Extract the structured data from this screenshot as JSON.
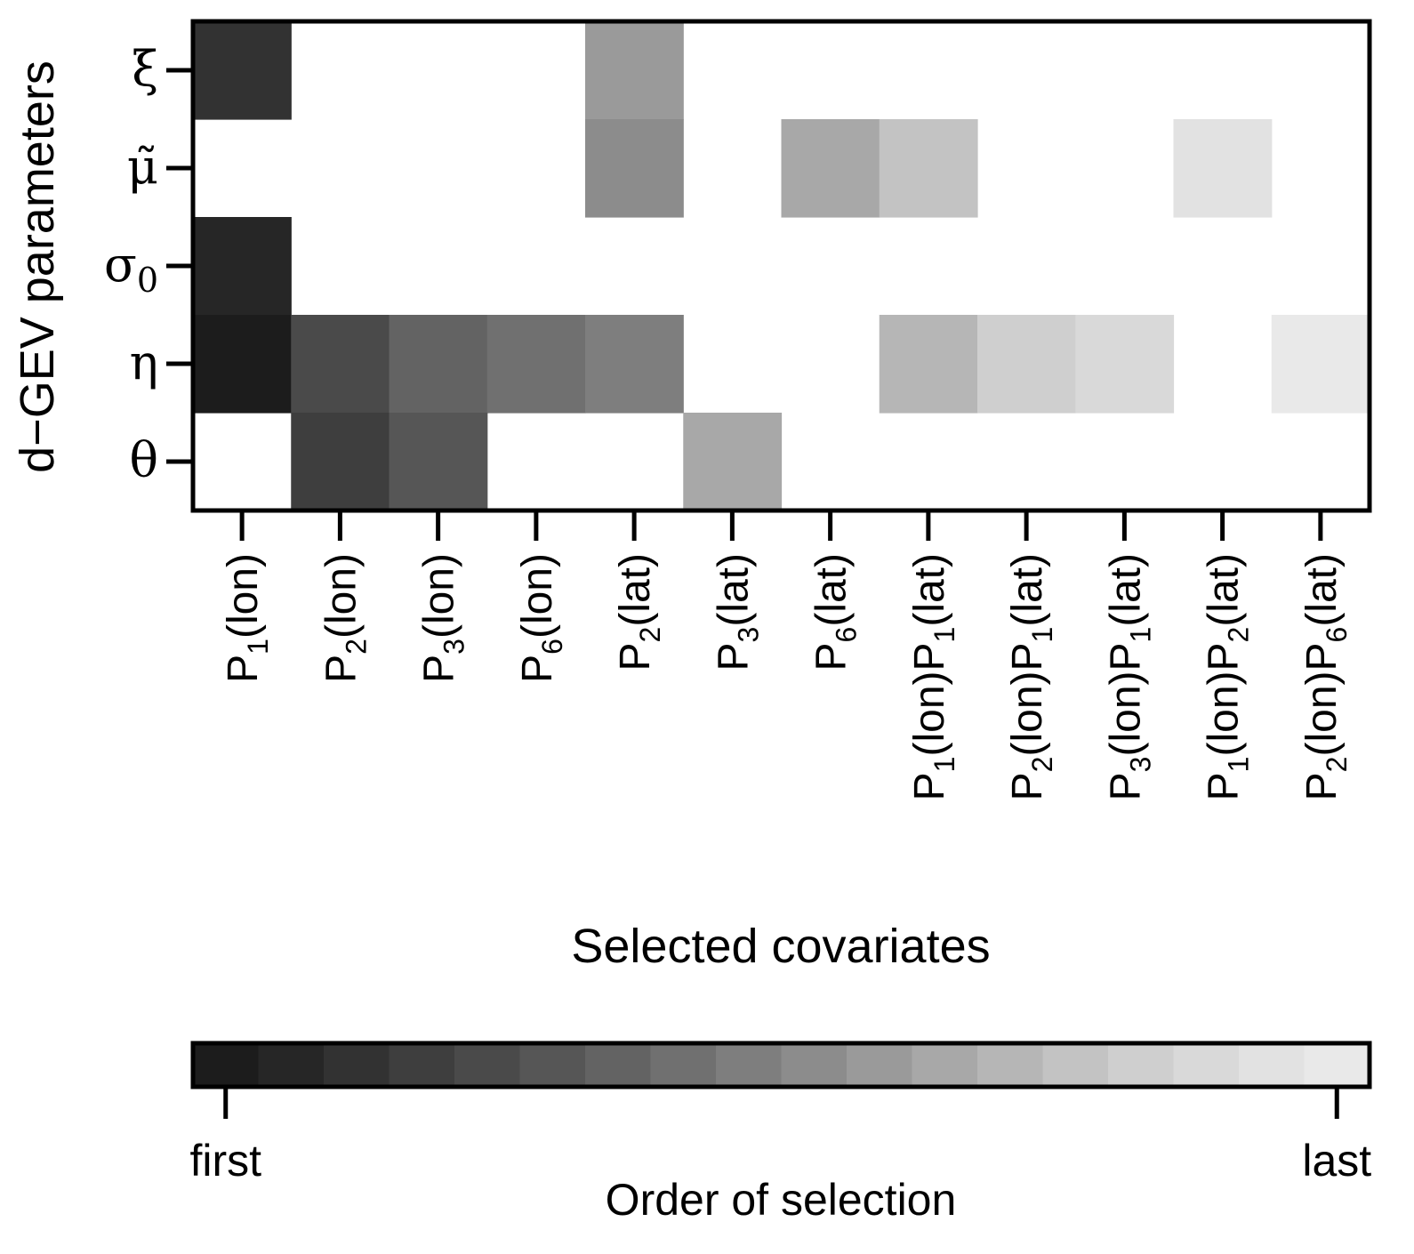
{
  "chart_data": {
    "type": "heatmap",
    "xlabel": "Selected covariates",
    "ylabel": "d−GEV parameters",
    "rows": [
      {
        "sym": "ξ",
        "sub": ""
      },
      {
        "sym": "μ̃",
        "sub": ""
      },
      {
        "sym": "σ",
        "sub": "0"
      },
      {
        "sym": "η",
        "sub": ""
      },
      {
        "sym": "θ",
        "sub": ""
      }
    ],
    "columns": [
      [
        {
          "t": "P",
          "sub": "1"
        },
        {
          "t": "(lon)"
        }
      ],
      [
        {
          "t": "P",
          "sub": "2"
        },
        {
          "t": "(lon)"
        }
      ],
      [
        {
          "t": "P",
          "sub": "3"
        },
        {
          "t": "(lon)"
        }
      ],
      [
        {
          "t": "P",
          "sub": "6"
        },
        {
          "t": "(lon)"
        }
      ],
      [
        {
          "t": "P",
          "sub": "2"
        },
        {
          "t": "(lat)"
        }
      ],
      [
        {
          "t": "P",
          "sub": "3"
        },
        {
          "t": "(lat)"
        }
      ],
      [
        {
          "t": "P",
          "sub": "6"
        },
        {
          "t": "(lat)"
        }
      ],
      [
        {
          "t": "P",
          "sub": "1"
        },
        {
          "t": "(lon)P"
        },
        {
          "t": "",
          "sub": "1"
        },
        {
          "t": "(lat)"
        }
      ],
      [
        {
          "t": "P",
          "sub": "2"
        },
        {
          "t": "(lon)P"
        },
        {
          "t": "",
          "sub": "1"
        },
        {
          "t": "(lat)"
        }
      ],
      [
        {
          "t": "P",
          "sub": "3"
        },
        {
          "t": "(lon)P"
        },
        {
          "t": "",
          "sub": "1"
        },
        {
          "t": "(lat)"
        }
      ],
      [
        {
          "t": "P",
          "sub": "1"
        },
        {
          "t": "(lon)P"
        },
        {
          "t": "",
          "sub": "2"
        },
        {
          "t": "(lat)"
        }
      ],
      [
        {
          "t": "P",
          "sub": "2"
        },
        {
          "t": "(lon)P"
        },
        {
          "t": "",
          "sub": "6"
        },
        {
          "t": "(lat)"
        }
      ]
    ],
    "order_matrix": [
      [
        3,
        null,
        null,
        null,
        11,
        null,
        null,
        null,
        null,
        null,
        null,
        null
      ],
      [
        null,
        null,
        null,
        null,
        10,
        null,
        12,
        14,
        null,
        null,
        17,
        null
      ],
      [
        2,
        null,
        null,
        null,
        null,
        null,
        null,
        null,
        null,
        null,
        null,
        null
      ],
      [
        1,
        5,
        7,
        8,
        9,
        null,
        null,
        13,
        15,
        16,
        null,
        18
      ],
      [
        null,
        4,
        6,
        null,
        null,
        12,
        null,
        null,
        null,
        null,
        null,
        null
      ]
    ],
    "palette": [
      "#1c1c1c",
      "#262626",
      "#323232",
      "#3e3e3e",
      "#4a4a4a",
      "#565656",
      "#636363",
      "#707070",
      "#7e7e7e",
      "#8c8c8c",
      "#9a9a9a",
      "#a8a8a8",
      "#b6b6b6",
      "#c3c3c3",
      "#cfcfcf",
      "#d9d9d9",
      "#e2e2e2",
      "#e9e9e9"
    ],
    "colorbar": {
      "label": "Order of selection",
      "low_label": "first",
      "high_label": "last"
    }
  }
}
